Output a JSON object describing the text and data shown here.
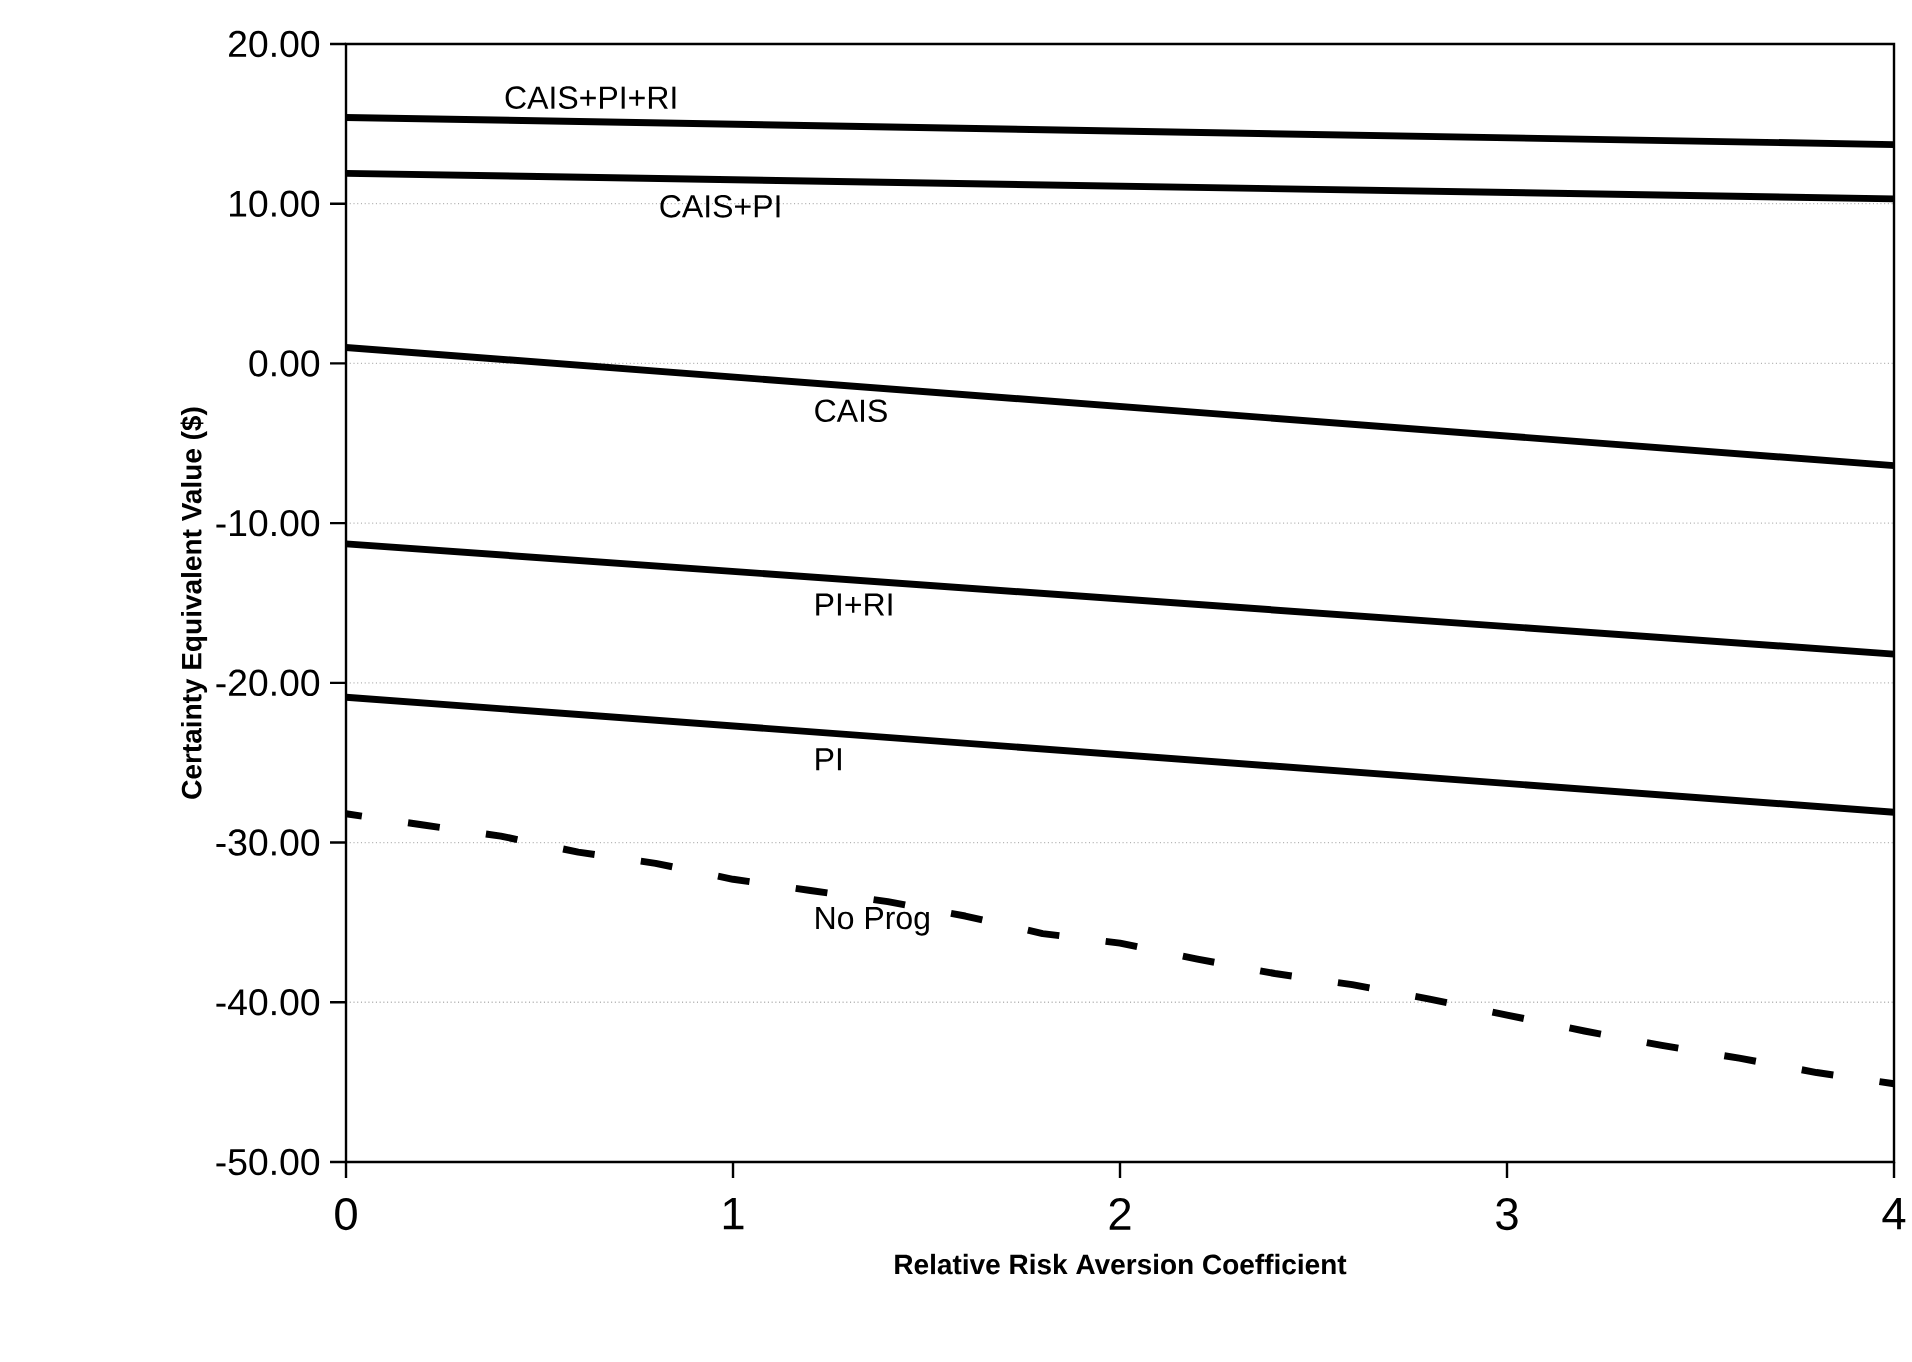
{
  "chart_data": {
    "type": "line",
    "xlabel": "Relative Risk Aversion Coefficient",
    "ylabel": "Certainty Equivalent Value ($)",
    "xlim": [
      0,
      4
    ],
    "xticks": [
      0,
      1,
      2,
      3,
      4
    ],
    "ylim": [
      -50,
      20
    ],
    "yticks": [
      {
        "value": -50,
        "label": "-50.00"
      },
      {
        "value": -40,
        "label": "-40.00"
      },
      {
        "value": -30,
        "label": "-30.00"
      },
      {
        "value": -20,
        "label": "-20.00"
      },
      {
        "value": -10,
        "label": "-10.00"
      },
      {
        "value": 0,
        "label": "0.00"
      },
      {
        "value": 10,
        "label": "10.00"
      },
      {
        "value": 20,
        "label": "20.00"
      }
    ],
    "grid": "y",
    "series": [
      {
        "name": "CAIS+PI+RI",
        "color": "#000000",
        "line_style": "solid",
        "x": [
          0,
          4
        ],
        "values": [
          15.4,
          13.7
        ]
      },
      {
        "name": "CAIS+PI",
        "color": "#000000",
        "line_style": "solid",
        "x": [
          0,
          4
        ],
        "values": [
          11.9,
          10.3
        ]
      },
      {
        "name": "CAIS",
        "color": "#000000",
        "line_style": "solid",
        "x": [
          0,
          4
        ],
        "values": [
          1.0,
          -6.4
        ]
      },
      {
        "name": "PI+RI",
        "color": "#000000",
        "line_style": "solid",
        "x": [
          0,
          4
        ],
        "values": [
          -11.3,
          -18.2
        ]
      },
      {
        "name": "PI",
        "color": "#000000",
        "line_style": "solid",
        "x": [
          0,
          4
        ],
        "values": [
          -20.9,
          -28.1
        ]
      },
      {
        "name": "No Prog",
        "color": "#000000",
        "line_style": "dashed",
        "x": [
          0,
          0.2,
          0.4,
          0.6,
          0.8,
          1.0,
          1.2,
          1.4,
          1.6,
          1.8,
          2.0,
          2.2,
          2.4,
          2.6,
          2.8,
          3.0,
          3.2,
          3.4,
          3.6,
          3.8,
          4.0
        ],
        "values": [
          -28.2,
          -28.9,
          -29.6,
          -30.6,
          -31.3,
          -32.3,
          -33.0,
          -33.7,
          -34.6,
          -35.7,
          -36.3,
          -37.3,
          -38.2,
          -38.9,
          -39.8,
          -40.8,
          -41.8,
          -42.7,
          -43.5,
          -44.4,
          -45.1
        ]
      }
    ]
  }
}
